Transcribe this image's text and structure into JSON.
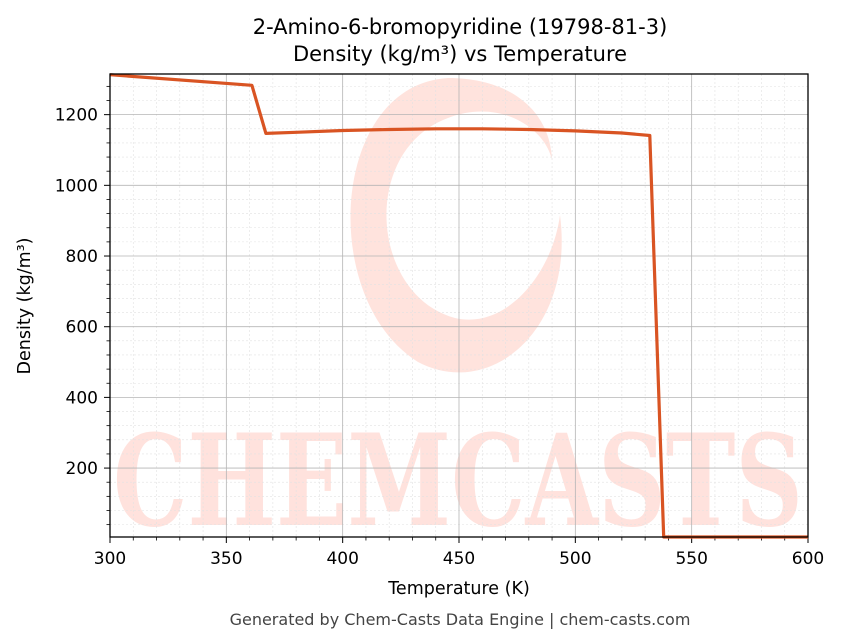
{
  "chart_data": {
    "type": "line",
    "title": "2-Amino-6-bromopyridine (19798-81-3)",
    "subtitle": "Density (kg/m³) vs Temperature",
    "xlabel": "Temperature (K)",
    "ylabel": "Density (kg/m³)",
    "xlim": [
      300,
      600
    ],
    "ylim": [
      5,
      1315
    ],
    "x_ticks": [
      300,
      350,
      400,
      450,
      500,
      550,
      600
    ],
    "y_ticks": [
      200,
      400,
      600,
      800,
      1000,
      1200
    ],
    "grid": true,
    "series": [
      {
        "color": "#d95423",
        "x": [
          300,
          361,
          367,
          380,
          400,
          420,
          440,
          450,
          460,
          480,
          500,
          520,
          532,
          538,
          545,
          560,
          580,
          600
        ],
        "y": [
          1313,
          1283,
          1147,
          1150,
          1155,
          1158,
          1160,
          1160,
          1160,
          1158,
          1154,
          1148,
          1141,
          5,
          5,
          5,
          5,
          5
        ]
      }
    ]
  },
  "watermark": {
    "text": "CHEMCASTS",
    "color": "#ffd9d2"
  },
  "footer": {
    "text": "Generated by Chem-Casts Data Engine | chem-casts.com"
  }
}
